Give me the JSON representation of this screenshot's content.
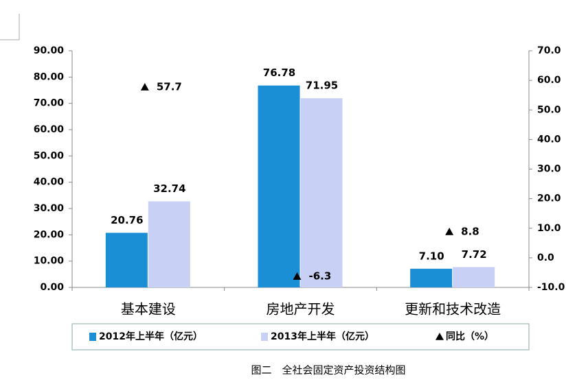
{
  "chart_data": {
    "type": "bar",
    "caption": "图二　全社会固定资产投资结构图",
    "categories": [
      "基本建设",
      "房地产开发",
      "更新和技术改造"
    ],
    "series": [
      {
        "name": "2012年上半年（亿元）",
        "color": "#1a8fd6",
        "values": [
          20.76,
          76.78,
          7.1
        ],
        "value_labels": [
          "20.76",
          "76.78",
          "7.10"
        ]
      },
      {
        "name": "2013年上半年（亿元）",
        "color": "#c9d0f5",
        "values": [
          32.74,
          71.95,
          7.72
        ]
      },
      {
        "name": "同比（%）",
        "color": "#000000",
        "axis": "y2",
        "marker": "triangle",
        "values": [
          57.7,
          -6.3,
          8.8
        ]
      }
    ],
    "ylim": [
      0,
      90
    ],
    "yticks": [
      {
        "value": 0,
        "label": "0.00"
      },
      {
        "value": 10,
        "label": "10.00"
      },
      {
        "value": 20,
        "label": "20.00"
      },
      {
        "value": 30,
        "label": "30.00"
      },
      {
        "value": 40,
        "label": "40.00"
      },
      {
        "value": 50,
        "label": "50.00"
      },
      {
        "value": 60,
        "label": "60.00"
      },
      {
        "value": 70,
        "label": "70.00"
      },
      {
        "value": 80,
        "label": "80.00"
      },
      {
        "value": 90,
        "label": "90.00"
      }
    ],
    "y2lim": [
      -10,
      70
    ],
    "y2ticks": [
      {
        "value": -10,
        "label": "-10.0"
      },
      {
        "value": 0,
        "label": "0.0"
      },
      {
        "value": 10,
        "label": "10.0"
      },
      {
        "value": 20,
        "label": "20.0"
      },
      {
        "value": 30,
        "label": "30.0"
      },
      {
        "value": 40,
        "label": "40.0"
      },
      {
        "value": 50,
        "label": "50.0"
      },
      {
        "value": 60,
        "label": "60.0"
      },
      {
        "value": 70,
        "label": "70.0"
      }
    ],
    "grid": false,
    "legend": "bottom"
  }
}
